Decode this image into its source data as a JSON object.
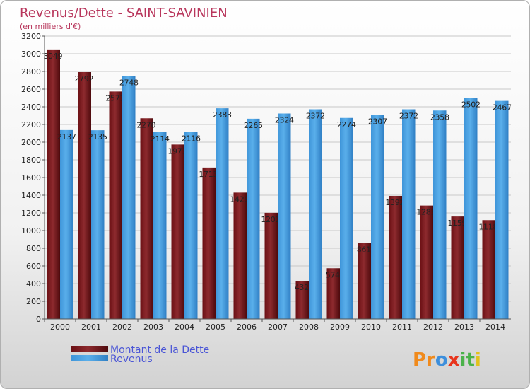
{
  "chart_data": {
    "type": "bar",
    "title": "Revenus/Dette - SAINT-SAVINIEN",
    "subtitle": "(en milliers d'€)",
    "categories": [
      "2000",
      "2001",
      "2002",
      "2003",
      "2004",
      "2005",
      "2006",
      "2007",
      "2008",
      "2009",
      "2010",
      "2011",
      "2012",
      "2013",
      "2014"
    ],
    "series": [
      {
        "name": "Montant de la Dette",
        "color": "#7a1a1e",
        "values": [
          3049,
          2792,
          2573,
          2270,
          1973,
          1713,
          1429,
          1201,
          432,
          574,
          861,
          1392,
          1283,
          1159,
          1118
        ],
        "labels": [
          "3049",
          "2792",
          "2573",
          "2270",
          "1973",
          "1713",
          "1429",
          "1201",
          "432",
          "574",
          "861",
          "1392",
          "1283",
          "1159",
          "1118"
        ]
      },
      {
        "name": "Revenus",
        "color": "#4ea3e4",
        "values": [
          2137,
          2135,
          2748,
          2114,
          2116,
          2383,
          2265,
          2324,
          2372,
          2274,
          2307,
          2372,
          2358,
          2502,
          2467
        ],
        "labels": [
          "2137",
          "2135",
          "2748",
          "2114",
          "2116",
          "2383",
          "2265",
          "2324",
          "2372",
          "2274",
          "2307",
          "2372",
          "2358",
          "2502",
          "2467"
        ]
      }
    ],
    "yticks": [
      0,
      200,
      400,
      600,
      800,
      1000,
      1200,
      1400,
      1600,
      1800,
      2000,
      2200,
      2400,
      2600,
      2800,
      3000,
      3200
    ],
    "ylim": [
      0,
      3200
    ],
    "grid": true,
    "legend": "bottom-left"
  },
  "logo": {
    "letters": [
      "P",
      "r",
      "o",
      "x",
      "i",
      "t",
      "i"
    ],
    "colors": [
      "#f08a1c",
      "#f08a1c",
      "#3d8fdc",
      "#e8341c",
      "#4bb24a",
      "#4bb24a",
      "#e2c21c"
    ]
  }
}
